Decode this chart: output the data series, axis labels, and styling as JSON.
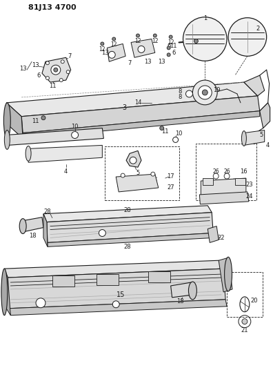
{
  "title": "81J13 4700",
  "bg": "#ffffff",
  "lc": "#1a1a1a",
  "fig_w": 3.96,
  "fig_h": 5.33,
  "dpi": 100
}
